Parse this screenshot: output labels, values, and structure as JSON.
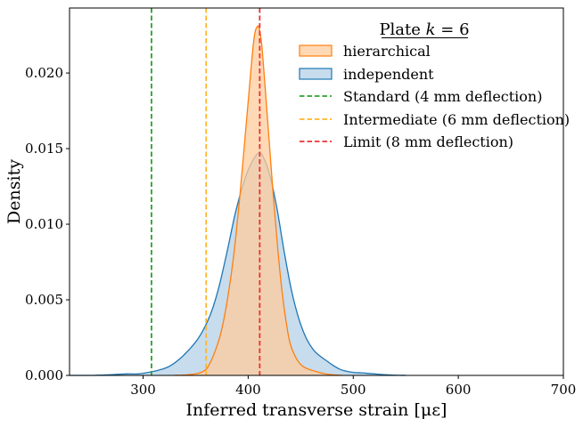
{
  "chart_data": {
    "type": "area",
    "title": "",
    "legend_title": "Plate k = 6",
    "legend_title_parts": {
      "prefix": "Plate ",
      "var": "k",
      "suffix": " = 6"
    },
    "xlabel": "Inferred transverse strain [με]",
    "xlabel_parts": {
      "text": "Inferred transverse strain ",
      "unit": "[με]"
    },
    "ylabel": "Density",
    "xlim": [
      230,
      700
    ],
    "ylim": [
      0,
      0.0243
    ],
    "x_ticks": [
      300,
      400,
      500,
      600,
      700
    ],
    "x_tick_labels": [
      "300",
      "400",
      "500",
      "600",
      "700"
    ],
    "y_ticks": [
      0,
      0.005,
      0.01,
      0.015,
      0.02
    ],
    "y_tick_labels": [
      "0.000",
      "0.005",
      "0.010",
      "0.015",
      "0.020"
    ],
    "legend_position": "top-right",
    "series": [
      {
        "name": "hierarchical",
        "kind": "density",
        "line_color": "#ff7f0e",
        "fill_color": "#ffcc9e",
        "fill_opacity": 0.75,
        "x": [
          330,
          340,
          350,
          358,
          362,
          368,
          374,
          380,
          386,
          392,
          398,
          403,
          406,
          409,
          411,
          413,
          416,
          420,
          424,
          428,
          432,
          436,
          440,
          446,
          452,
          458,
          465,
          472,
          480,
          490
        ],
        "y": [
          0.0,
          3e-05,
          0.0001,
          0.0003,
          0.0006,
          0.0015,
          0.0028,
          0.0049,
          0.0078,
          0.0118,
          0.0165,
          0.0205,
          0.0225,
          0.0231,
          0.0228,
          0.0218,
          0.0192,
          0.0155,
          0.0118,
          0.0085,
          0.0057,
          0.0036,
          0.0021,
          0.0011,
          0.0006,
          0.0004,
          0.00025,
          0.00012,
          4e-05,
          0.0
        ]
      },
      {
        "name": "independent",
        "kind": "density",
        "line_color": "#1f77b4",
        "fill_color": "#a9c9e4",
        "fill_opacity": 0.65,
        "x": [
          230,
          250,
          270,
          285,
          295,
          305,
          315,
          325,
          335,
          345,
          352,
          358,
          365,
          372,
          380,
          388,
          396,
          402,
          408,
          411,
          414,
          420,
          427,
          434,
          441,
          448,
          455,
          462,
          468,
          474,
          480,
          486,
          492,
          500,
          508,
          516,
          524,
          535,
          550
        ],
        "y": [
          0.0,
          0.0,
          5e-05,
          0.0001,
          0.0001,
          0.0002,
          0.00035,
          0.0006,
          0.0011,
          0.0018,
          0.0024,
          0.0031,
          0.0042,
          0.0058,
          0.0082,
          0.0108,
          0.0128,
          0.0139,
          0.0146,
          0.0147,
          0.0145,
          0.0134,
          0.0112,
          0.0083,
          0.0057,
          0.0038,
          0.0025,
          0.0017,
          0.0013,
          0.001,
          0.0007,
          0.00045,
          0.0003,
          0.0002,
          0.00017,
          0.00012,
          8e-05,
          3e-05,
          0.0
        ]
      }
    ],
    "reference_lines": [
      {
        "name": "Standard (4 mm deflection)",
        "x": 308,
        "color": "#2ca02c"
      },
      {
        "name": "Intermediate (6 mm deflection)",
        "x": 360,
        "color": "#ffb627"
      },
      {
        "name": "Limit (8 mm deflection)",
        "x": 411,
        "color": "#ee3030"
      }
    ]
  }
}
